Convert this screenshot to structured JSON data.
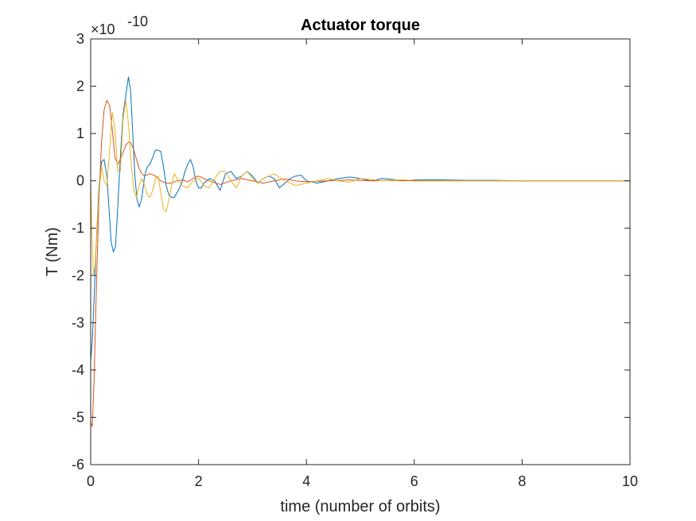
{
  "chart_data": {
    "type": "line",
    "title": "Actuator torque",
    "xlabel": "time (number of orbits)",
    "ylabel": "T (Nm)",
    "y_exponent": {
      "base": "×10",
      "power": "-10"
    },
    "xlim": [
      0,
      10
    ],
    "ylim": [
      -6,
      3
    ],
    "xticks": [
      0,
      2,
      4,
      6,
      8,
      10
    ],
    "yticks": [
      -6,
      -5,
      -4,
      -3,
      -2,
      -1,
      0,
      1,
      2,
      3
    ],
    "grid": false,
    "box": true,
    "series": [
      {
        "color": "#0072BD",
        "x": [
          0,
          0.03,
          0.06,
          0.1,
          0.15,
          0.2,
          0.25,
          0.3,
          0.34,
          0.38,
          0.42,
          0.46,
          0.5,
          0.55,
          0.6,
          0.65,
          0.7,
          0.74,
          0.78,
          0.82,
          0.86,
          0.9,
          0.95,
          1.0,
          1.05,
          1.1,
          1.15,
          1.2,
          1.25,
          1.3,
          1.35,
          1.4,
          1.45,
          1.5,
          1.55,
          1.6,
          1.65,
          1.7,
          1.75,
          1.8,
          1.85,
          1.9,
          1.95,
          2.0,
          2.05,
          2.1,
          2.2,
          2.3,
          2.4,
          2.5,
          2.6,
          2.7,
          2.8,
          2.9,
          3.0,
          3.1,
          3.2,
          3.3,
          3.4,
          3.5,
          3.6,
          3.7,
          3.8,
          3.9,
          4.0,
          4.2,
          4.4,
          4.6,
          4.8,
          5.0,
          5.2,
          5.4,
          5.6,
          5.8,
          6.0,
          6.5,
          7.0,
          7.5,
          8.0,
          9.0,
          10.0
        ],
        "y": [
          -3.8,
          -3.4,
          -2.6,
          -1.4,
          -0.2,
          0.4,
          0.45,
          0.1,
          -0.6,
          -1.3,
          -1.5,
          -1.4,
          -0.6,
          0.5,
          1.4,
          1.8,
          2.2,
          1.9,
          1.0,
          0.1,
          -0.4,
          -0.55,
          -0.35,
          0.1,
          0.3,
          0.35,
          0.5,
          0.65,
          0.65,
          0.62,
          0.3,
          -0.1,
          -0.3,
          -0.35,
          -0.35,
          -0.25,
          -0.15,
          0.0,
          0.2,
          0.35,
          0.45,
          0.3,
          0.0,
          -0.15,
          -0.15,
          -0.05,
          0.05,
          0.0,
          -0.2,
          0.15,
          0.2,
          0.05,
          0.1,
          0.2,
          0.1,
          -0.05,
          0.05,
          0.1,
          0.05,
          -0.15,
          -0.05,
          0.05,
          0.1,
          0.12,
          0.0,
          -0.05,
          0.0,
          0.05,
          0.08,
          0.05,
          0.0,
          0.05,
          0.03,
          0.0,
          0.02,
          0.02,
          0.01,
          0.01,
          0.0,
          0.0,
          0.0
        ]
      },
      {
        "color": "#D95319",
        "x": [
          0,
          0.03,
          0.06,
          0.1,
          0.15,
          0.2,
          0.25,
          0.3,
          0.35,
          0.4,
          0.45,
          0.5,
          0.55,
          0.6,
          0.65,
          0.7,
          0.75,
          0.8,
          0.85,
          0.9,
          0.95,
          1.0,
          1.1,
          1.2,
          1.3,
          1.4,
          1.5,
          1.6,
          1.7,
          1.8,
          1.9,
          2.0,
          2.2,
          2.4,
          2.6,
          2.8,
          3.0,
          3.2,
          3.4,
          3.6,
          3.8,
          4.0,
          4.4,
          4.8,
          5.2,
          5.6,
          6.0,
          7.0,
          8.0,
          10.0
        ],
        "y": [
          -5.1,
          -5.2,
          -4.3,
          -2.5,
          -0.5,
          0.8,
          1.5,
          1.7,
          1.6,
          1.1,
          0.5,
          0.35,
          0.45,
          0.6,
          0.75,
          0.82,
          0.8,
          0.65,
          0.45,
          0.25,
          0.15,
          0.1,
          0.15,
          0.1,
          0.0,
          -0.05,
          -0.05,
          0.0,
          0.02,
          -0.02,
          0.05,
          0.1,
          0.0,
          -0.08,
          0.0,
          0.05,
          0.0,
          -0.05,
          0.0,
          0.04,
          0.0,
          -0.02,
          0.0,
          0.02,
          0.0,
          0.01,
          0.0,
          0.0,
          0.0,
          0.0
        ]
      },
      {
        "color": "#EDB120",
        "x": [
          0,
          0.02,
          0.05,
          0.08,
          0.12,
          0.16,
          0.2,
          0.25,
          0.3,
          0.35,
          0.4,
          0.45,
          0.5,
          0.55,
          0.6,
          0.65,
          0.7,
          0.75,
          0.8,
          0.85,
          0.9,
          0.95,
          1.0,
          1.05,
          1.1,
          1.15,
          1.2,
          1.25,
          1.3,
          1.35,
          1.4,
          1.45,
          1.5,
          1.55,
          1.6,
          1.7,
          1.8,
          1.9,
          2.0,
          2.1,
          2.2,
          2.3,
          2.4,
          2.5,
          2.6,
          2.7,
          2.8,
          2.9,
          3.0,
          3.1,
          3.2,
          3.4,
          3.6,
          3.8,
          4.0,
          4.2,
          4.4,
          4.6,
          4.8,
          5.0,
          5.2,
          5.4,
          5.6,
          5.8,
          6.0,
          6.5,
          7.0,
          8.0,
          10.0
        ],
        "y": [
          0.0,
          -1.0,
          -2.0,
          -1.8,
          -1.0,
          -0.2,
          0.3,
          0.0,
          -0.1,
          0.6,
          1.45,
          1.1,
          0.2,
          0.2,
          1.3,
          1.7,
          1.2,
          0.4,
          -0.2,
          -0.35,
          -0.1,
          0.05,
          -0.1,
          -0.3,
          -0.35,
          -0.2,
          0.05,
          0.1,
          -0.25,
          -0.6,
          -0.65,
          -0.4,
          -0.1,
          0.15,
          0.05,
          -0.1,
          -0.15,
          0.0,
          0.05,
          -0.1,
          -0.15,
          0.05,
          0.2,
          0.2,
          0.0,
          -0.15,
          0.1,
          0.2,
          0.05,
          -0.05,
          0.05,
          0.15,
          0.0,
          -0.1,
          -0.05,
          0.0,
          0.05,
          0.0,
          -0.03,
          0.05,
          0.03,
          0.0,
          0.02,
          0.02,
          0.01,
          0.0,
          0.0,
          0.0,
          0.0
        ]
      }
    ]
  }
}
